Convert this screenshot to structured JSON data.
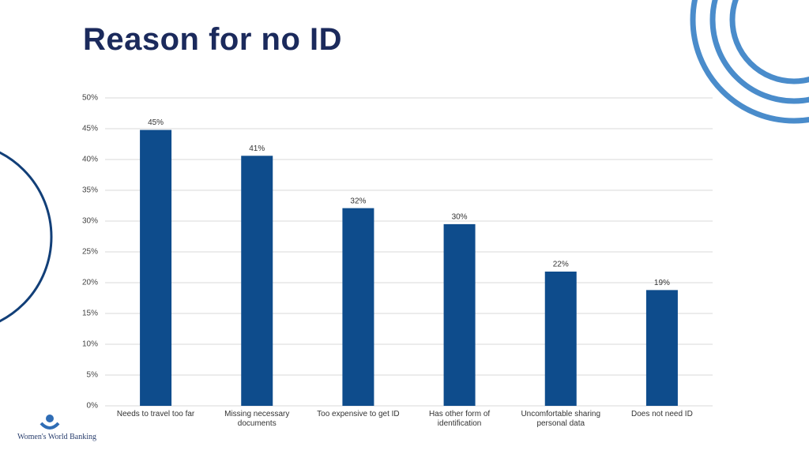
{
  "chart_data": {
    "type": "bar",
    "title": "Reason for no ID",
    "categories": [
      "Needs to travel too far",
      "Missing necessary documents",
      "Too expensive to get ID",
      "Has other form of identification",
      "Uncomfortable sharing personal data",
      "Does not need ID"
    ],
    "values": [
      44.8,
      40.6,
      32.1,
      29.5,
      21.8,
      18.8
    ],
    "value_labels": [
      "45%",
      "41%",
      "32%",
      "30%",
      "22%",
      "19%"
    ],
    "color": "#0e4c8c",
    "ylim": [
      0,
      50
    ],
    "yticks": [
      {
        "value": 0,
        "label": "0%"
      },
      {
        "value": 5,
        "label": "5%"
      },
      {
        "value": 10,
        "label": "10%"
      },
      {
        "value": 15,
        "label": "15%"
      },
      {
        "value": 20,
        "label": "20%"
      },
      {
        "value": 25,
        "label": "25%"
      },
      {
        "value": 30,
        "label": "30%"
      },
      {
        "value": 35,
        "label": "35%"
      },
      {
        "value": 40,
        "label": "40%"
      },
      {
        "value": 45,
        "label": "45%"
      },
      {
        "value": 50,
        "label": "50%"
      }
    ],
    "grid": true
  },
  "logo": "Women's World Banking"
}
